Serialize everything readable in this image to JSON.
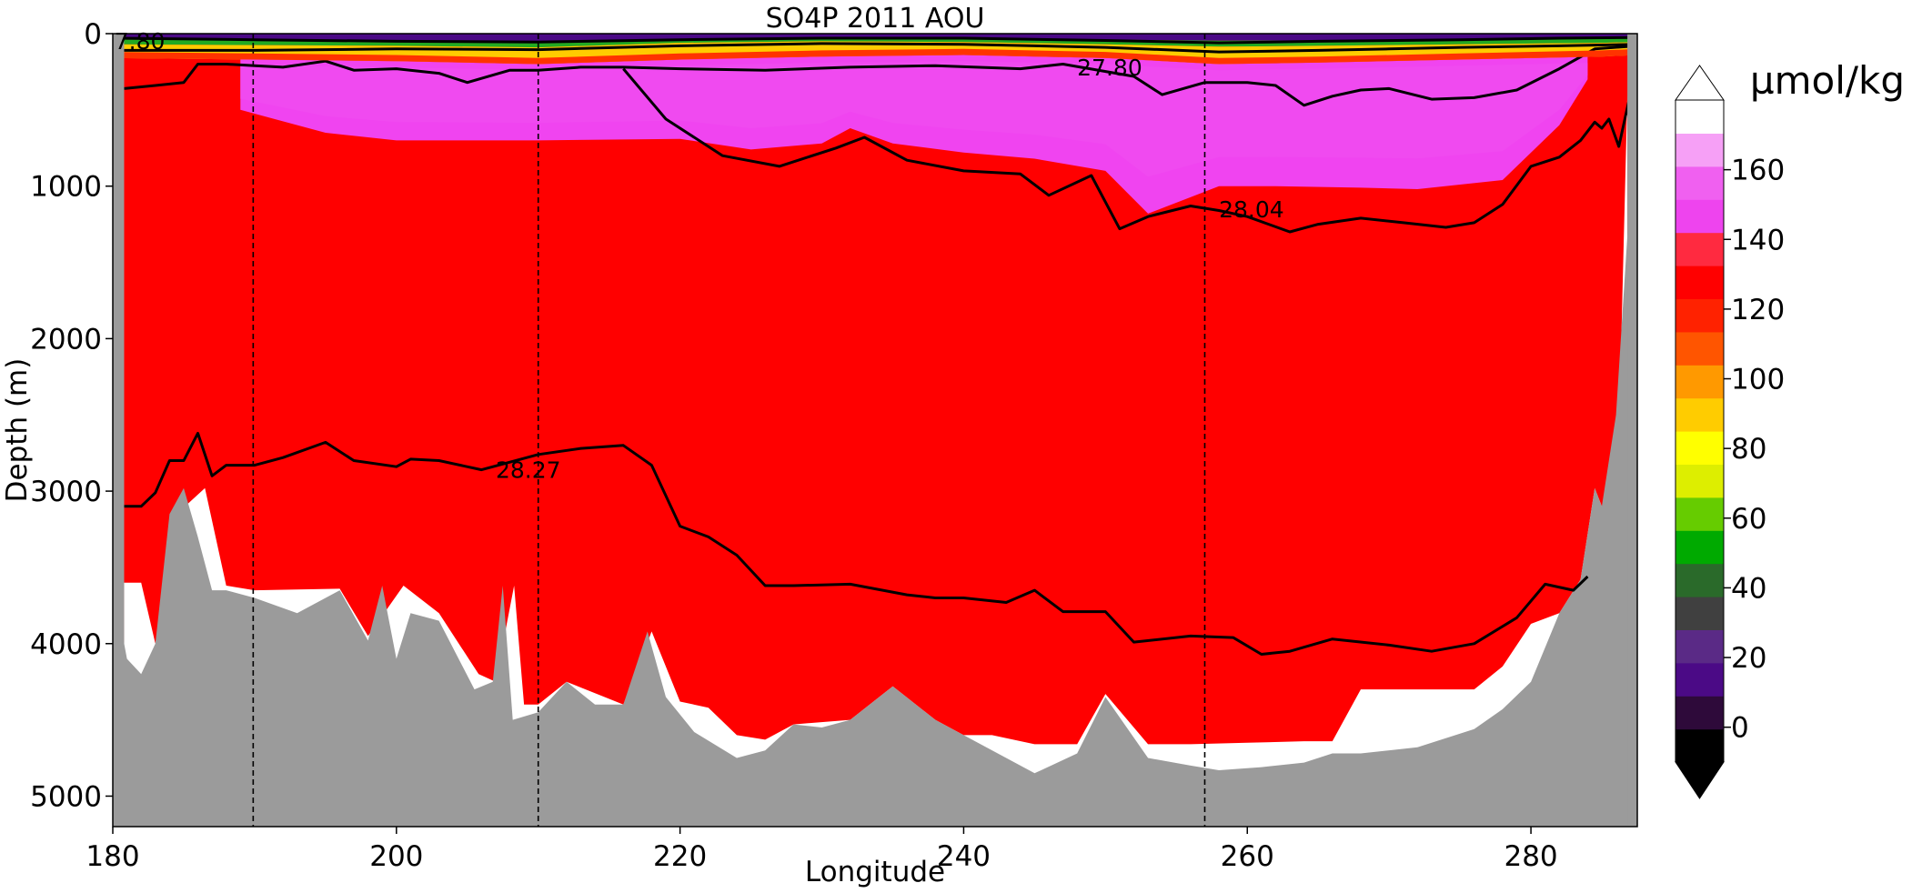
{
  "chart_data": {
    "type": "heatmap",
    "title": "SO4P 2011 AOU",
    "xlabel": "Longitude",
    "ylabel": "Depth (m)",
    "xlim": [
      180,
      287.5
    ],
    "ylim": [
      5200,
      0
    ],
    "y_inverted": true,
    "x_ticks": [
      "180",
      "200",
      "220",
      "240",
      "260",
      "280"
    ],
    "y_ticks": [
      "0",
      "1000",
      "2000",
      "3000",
      "4000",
      "5000"
    ],
    "colorbar": {
      "unit": "µmol/kg",
      "ticks": [
        "0",
        "20",
        "40",
        "60",
        "80",
        "100",
        "120",
        "140",
        "160"
      ],
      "range": [
        -10,
        180
      ],
      "extend": "both",
      "colors": [
        "#000000",
        "#2e0a3a",
        "#4b0a86",
        "#5a2a86",
        "#404040",
        "#2a6a2a",
        "#00aa00",
        "#66cc00",
        "#ddee00",
        "#ffff00",
        "#ffcc00",
        "#ff9900",
        "#ff5500",
        "#ff2200",
        "#ff0000",
        "#ff2a40",
        "#ee44ee",
        "#f060f0",
        "#f6a0f6",
        "#ffffff"
      ]
    },
    "colors": {
      "deep_field": "#ff0000",
      "mid_layer": "#f044f0",
      "bottom_mask": "#9b9b9b",
      "contour": "#000000"
    },
    "section_lines_x": [
      189.9,
      210.0,
      257.0
    ],
    "bottom_topography": {
      "x": [
        180.0,
        181.0,
        182.0,
        183.0,
        184.0,
        185.0,
        186.0,
        187.0,
        188.0,
        190.0,
        193.0,
        196.0,
        198.0,
        199.0,
        200.0,
        201.0,
        203.0,
        205.5,
        206.8,
        207.5,
        208.2,
        210.0,
        212.0,
        214.0,
        216.0,
        217.7,
        219.0,
        221.0,
        224.0,
        226.0,
        228.0,
        230.0,
        232.0,
        235.0,
        238.0,
        241.0,
        245.0,
        248.0,
        250.0,
        253.0,
        256.0,
        258.0,
        261.0,
        264.0,
        266.0,
        268.0,
        272.0,
        276.0,
        278.0,
        280.0,
        282.0,
        283.5,
        284.5,
        285.0,
        286.0,
        287.5
      ],
      "depth": [
        3600,
        4100,
        4200,
        4000,
        3150,
        2980,
        3300,
        3650,
        3650,
        3700,
        3800,
        3650,
        3980,
        3620,
        4100,
        3800,
        3850,
        4300,
        4250,
        3620,
        4500,
        4450,
        4250,
        4400,
        4400,
        3920,
        4350,
        4580,
        4750,
        4700,
        4530,
        4550,
        4500,
        4280,
        4500,
        4650,
        4850,
        4720,
        4350,
        4750,
        4800,
        4830,
        4810,
        4780,
        4720,
        4720,
        4680,
        4560,
        4430,
        4250,
        3800,
        3580,
        2980,
        3100,
        2500,
        300
      ]
    },
    "valid_data_bottom": {
      "x": [
        180.8,
        182.0,
        183.0,
        184.5,
        186.5,
        188.0,
        190.0,
        196.0,
        198.0,
        200.5,
        203.0,
        205.8,
        207.0,
        208.3,
        209.0,
        210.0,
        212.0,
        216.0,
        218.0,
        220.0,
        222.0,
        224.0,
        226.0,
        228.0,
        232.0,
        235.0,
        238.0,
        240.0,
        242.0,
        245.0,
        248.0,
        250.0,
        253.0,
        256.0,
        260.0,
        264.0,
        266.0,
        268.0,
        272.0,
        276.0,
        278.0,
        280.0,
        282.0,
        283.5,
        284.5,
        285.0,
        286.0,
        286.8
      ],
      "depth": [
        3600,
        3600,
        4000,
        3150,
        2980,
        3620,
        3650,
        3640,
        3950,
        3620,
        3800,
        4200,
        4250,
        3620,
        4400,
        4400,
        4250,
        4400,
        3920,
        4380,
        4420,
        4600,
        4630,
        4530,
        4500,
        4280,
        4500,
        4600,
        4600,
        4660,
        4660,
        4330,
        4660,
        4660,
        4650,
        4640,
        4640,
        4300,
        4300,
        4300,
        4150,
        3870,
        3800,
        3580,
        2980,
        3100,
        3400,
        400
      ]
    },
    "layers": {
      "surface_green_bottom": {
        "x": [
          180,
          190,
          200,
          210,
          220,
          230,
          240,
          250,
          258,
          265,
          275,
          285,
          287.5
        ],
        "depth": [
          70,
          75,
          80,
          90,
          60,
          50,
          55,
          70,
          85,
          80,
          70,
          60,
          55
        ]
      },
      "red_band_bottom": {
        "x": [
          180,
          190,
          200,
          210,
          220,
          230,
          240,
          250,
          258,
          265,
          275,
          285,
          287.5
        ],
        "depth": [
          160,
          170,
          180,
          200,
          170,
          150,
          140,
          160,
          200,
          190,
          170,
          150,
          140
        ]
      },
      "magenta_bottom": {
        "x": [
          189,
          195,
          200,
          210,
          220,
          225,
          230,
          232,
          235,
          240,
          245,
          250,
          253,
          258,
          262,
          268,
          272,
          278,
          282,
          284
        ],
        "depth": [
          500,
          650,
          700,
          700,
          690,
          760,
          720,
          620,
          720,
          780,
          820,
          900,
          1180,
          1000,
          1000,
          1010,
          1020,
          960,
          600,
          300
        ]
      }
    },
    "contours": [
      {
        "label": "27.80",
        "label_at": [
          248.0,
          220
        ],
        "x": [
          180.8,
          183.0,
          185.0,
          186.0,
          188.0,
          190.0,
          192.0,
          195.0,
          197.0,
          200.0,
          203.0,
          205.0,
          208.0,
          210.0,
          213.0,
          216.0,
          220.0,
          226.0,
          232.0,
          238.0,
          244.0,
          247.0,
          252.0,
          254.0,
          257.0,
          260.0,
          262.0,
          264.0,
          266.0,
          268.0,
          270.0,
          273.0,
          276.0,
          279.0,
          282.0,
          284.5,
          287.5
        ],
        "depth": [
          360,
          340,
          320,
          200,
          200,
          210,
          220,
          180,
          240,
          230,
          260,
          320,
          240,
          240,
          220,
          220,
          230,
          240,
          220,
          210,
          230,
          200,
          280,
          400,
          320,
          320,
          340,
          470,
          410,
          370,
          360,
          430,
          420,
          370,
          230,
          100,
          80
        ]
      },
      {
        "label": "28.04",
        "label_at": [
          258.0,
          1150
        ],
        "x": [
          216.0,
          219.0,
          223.0,
          227.0,
          231.0,
          233.0,
          236.0,
          240.0,
          244.0,
          246.0,
          249.0,
          251.0,
          253.0,
          256.0,
          258.0,
          260.0,
          263.0,
          265.0,
          268.0,
          271.0,
          274.0,
          276.0,
          278.0,
          280.0,
          282.0,
          283.5,
          284.5,
          285.0,
          285.5,
          286.2,
          287.0
        ],
        "depth": [
          230,
          560,
          800,
          870,
          750,
          680,
          830,
          900,
          920,
          1060,
          930,
          1280,
          1200,
          1130,
          1160,
          1200,
          1300,
          1250,
          1210,
          1240,
          1270,
          1240,
          1120,
          870,
          810,
          700,
          580,
          620,
          560,
          740,
          400
        ]
      },
      {
        "label": "28.27",
        "label_at": [
          207.0,
          2860
        ],
        "x": [
          180.8,
          182.0,
          183.0,
          184.0,
          185.0,
          186.0,
          187.0,
          188.0,
          190.0,
          192.0,
          195.0,
          197.0,
          200.0,
          201.0,
          203.0,
          206.0,
          210.0,
          213.0,
          216.0,
          218.0,
          220.0,
          222.0,
          224.0,
          226.0,
          228.0,
          232.0,
          236.0,
          238.0,
          240.0,
          243.0,
          245.0,
          247.0,
          250.0,
          252.0,
          256.0,
          259.0,
          261.0,
          263.0,
          266.0,
          270.0,
          273.0,
          276.0,
          279.0,
          281.0,
          283.0,
          284.0
        ],
        "depth": [
          3100,
          3100,
          3010,
          2800,
          2800,
          2620,
          2900,
          2830,
          2830,
          2780,
          2680,
          2800,
          2840,
          2790,
          2800,
          2860,
          2760,
          2720,
          2700,
          2830,
          3230,
          3300,
          3420,
          3620,
          3620,
          3610,
          3680,
          3700,
          3700,
          3730,
          3650,
          3790,
          3790,
          3990,
          3950,
          3960,
          4070,
          4050,
          3970,
          4010,
          4050,
          4000,
          3830,
          3610,
          3650,
          3560
        ]
      },
      {
        "label": "",
        "x": [
          180,
          190,
          200,
          210,
          220,
          230,
          240,
          250,
          258,
          265,
          270,
          275,
          282,
          287.5
        ],
        "depth": [
          110,
          110,
          100,
          105,
          80,
          65,
          70,
          90,
          120,
          110,
          100,
          90,
          80,
          70
        ]
      },
      {
        "label": "",
        "x": [
          180,
          190,
          200,
          210,
          220,
          230,
          240,
          250,
          258,
          265,
          275,
          282,
          287.5
        ],
        "depth": [
          30,
          40,
          50,
          55,
          40,
          30,
          30,
          45,
          60,
          50,
          40,
          30,
          25
        ]
      }
    ],
    "partial_label": {
      "text": "7.80",
      "at": [
        180.5,
        90
      ]
    }
  }
}
